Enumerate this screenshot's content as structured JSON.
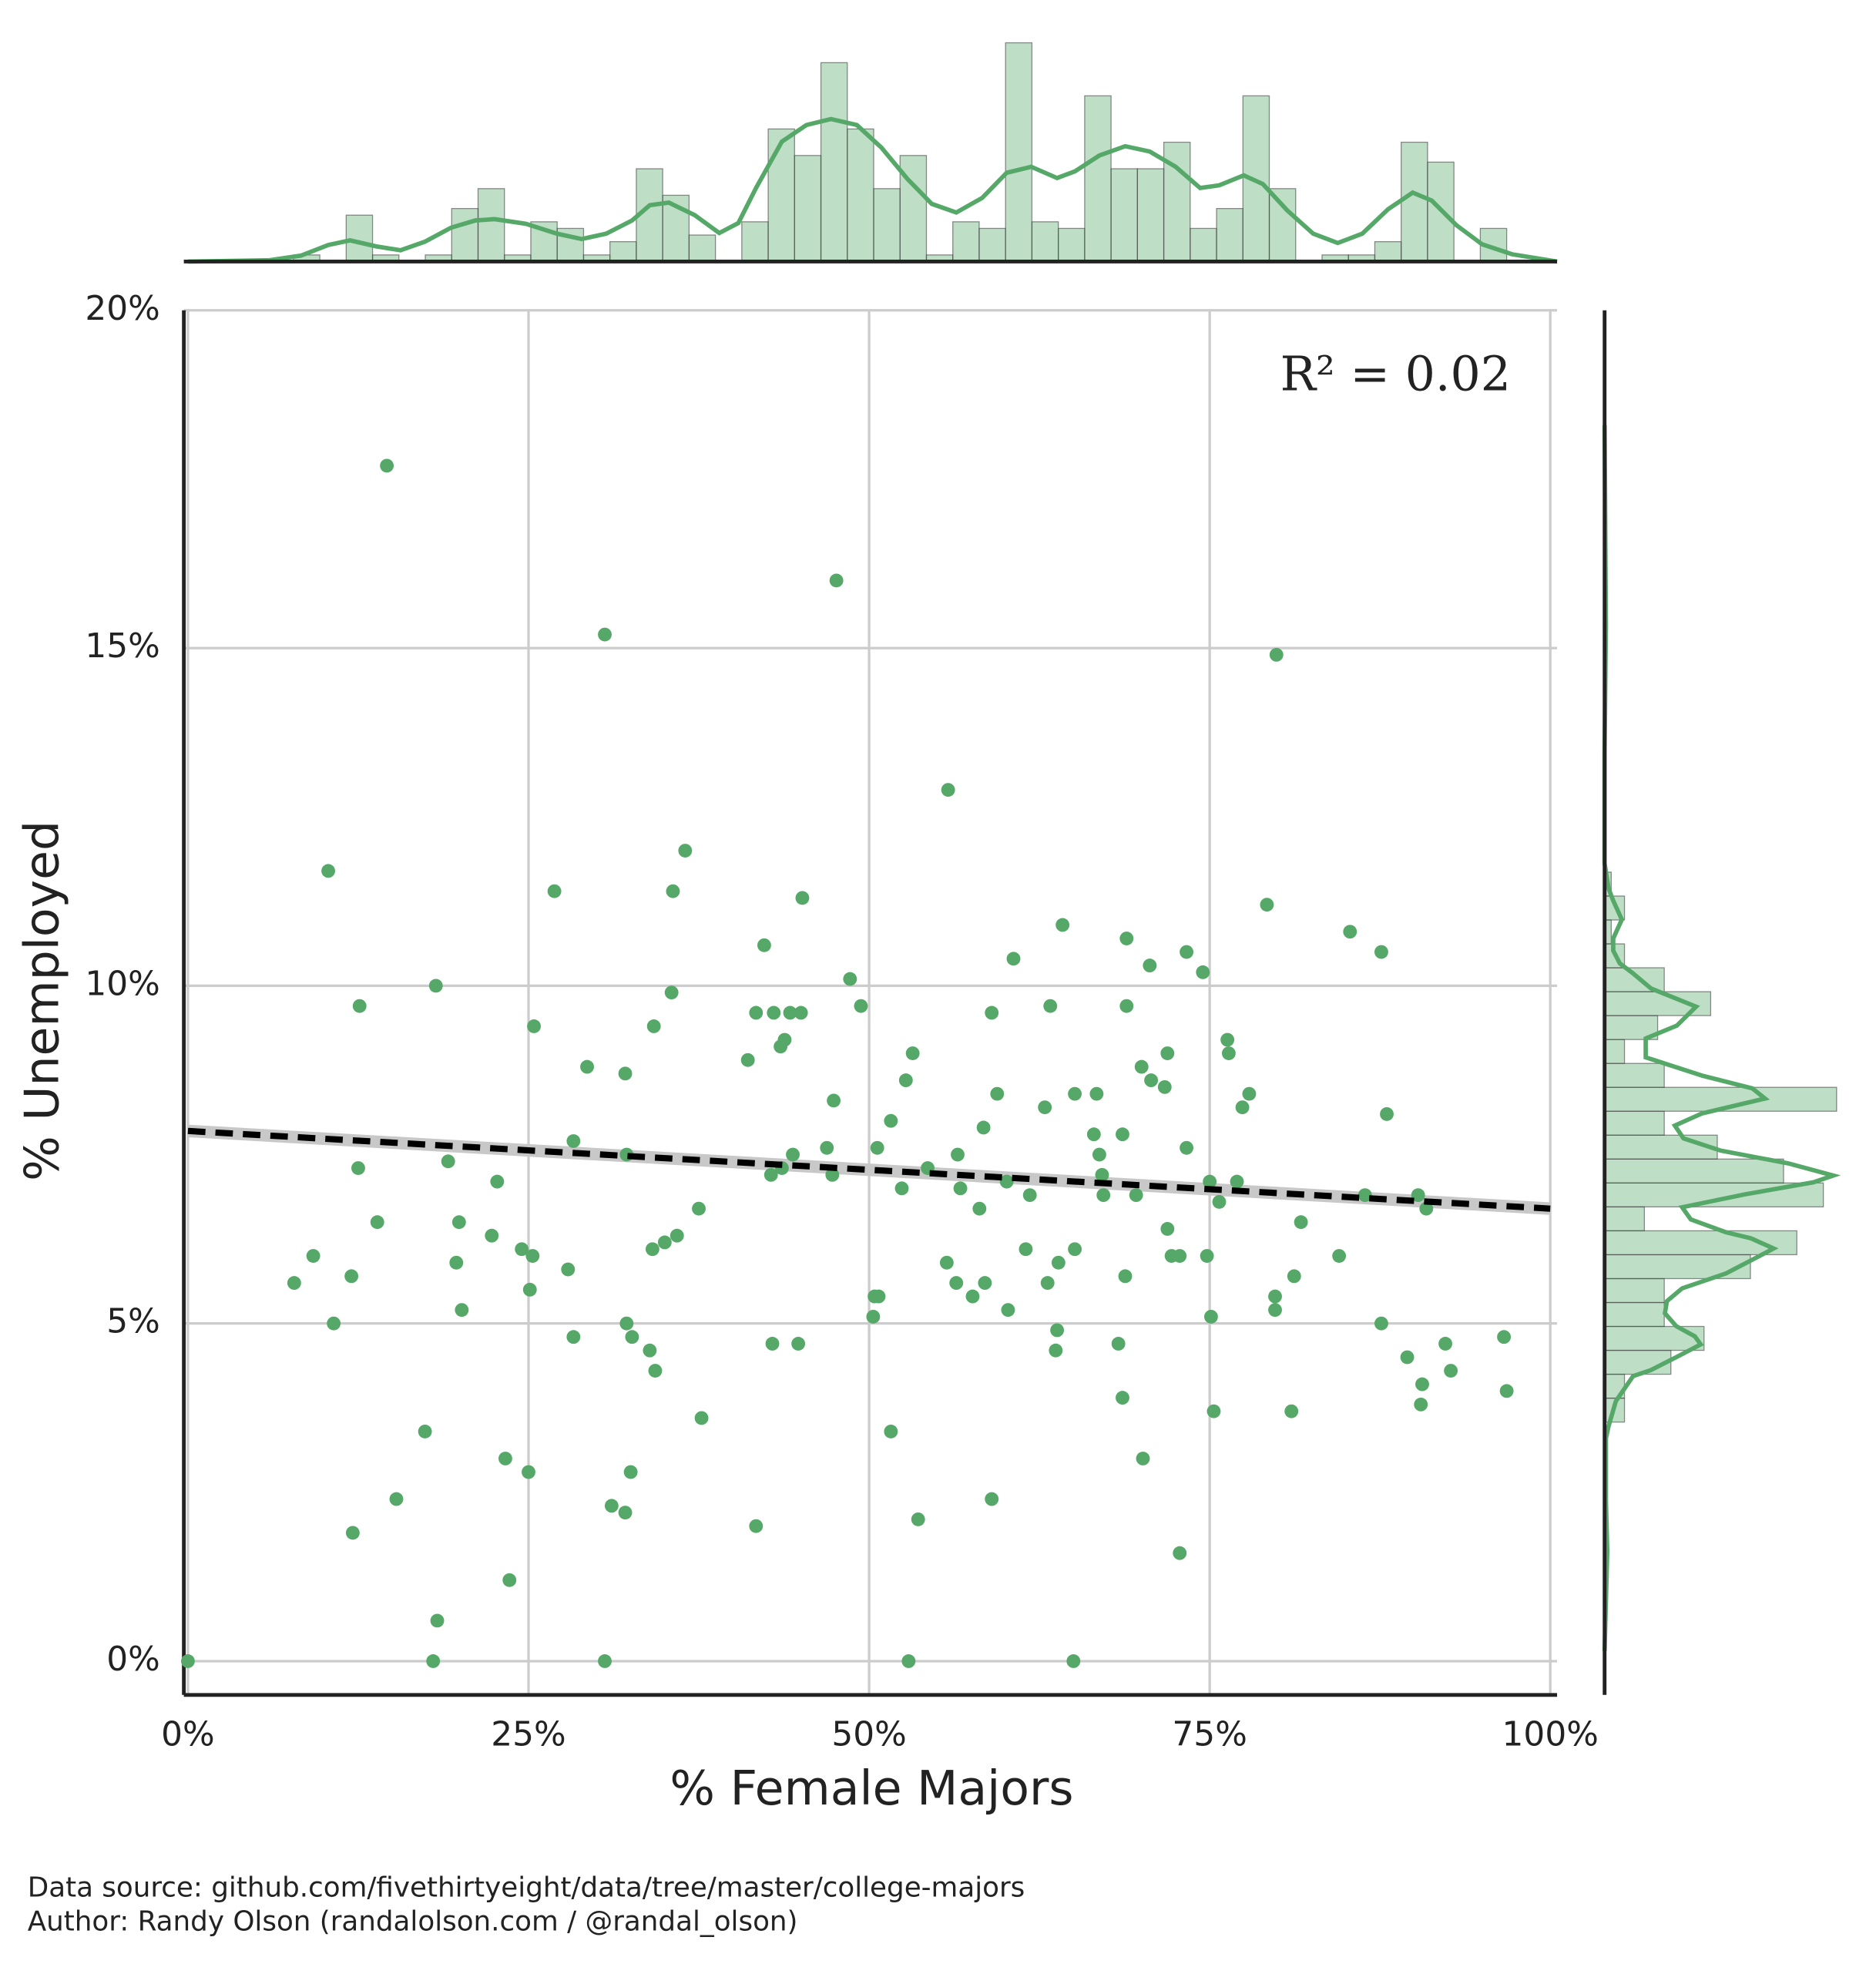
{
  "chart_data": {
    "type": "scatter",
    "x_label": "% Female Majors",
    "y_label": "% Unemployed",
    "annotation": "R² = 0.02",
    "color": "#55a868",
    "grid": true,
    "xlim": [
      -0.3,
      100.5
    ],
    "ylim": [
      -0.5,
      20
    ],
    "xticks": [
      {
        "value": 0,
        "label": "0%"
      },
      {
        "value": 25,
        "label": "25%"
      },
      {
        "value": 50,
        "label": "50%"
      },
      {
        "value": 75,
        "label": "75%"
      },
      {
        "value": 100,
        "label": "100%"
      }
    ],
    "yticks": [
      {
        "value": 0,
        "label": "0%"
      },
      {
        "value": 5,
        "label": "5%"
      },
      {
        "value": 10,
        "label": "10%"
      },
      {
        "value": 15,
        "label": "15%"
      },
      {
        "value": 20,
        "label": "20%"
      }
    ],
    "x": [
      0,
      14.6,
      47.6,
      30.6,
      79.9,
      55.8,
      10.3,
      36.5,
      26.9,
      35.6,
      45.1,
      79.2,
      64.2,
      68.9,
      85.3,
      42.3,
      73.3,
      87.6,
      60.6,
      70.6,
      74.5,
      48.6,
      18.2,
      35.5,
      49.4,
      12.6,
      63.3,
      68.9,
      41.7,
      43.0,
      44.2,
      45.0,
      59.0,
      25.4,
      34.2,
      43.8,
      43.5,
      76.3,
      41.1,
      53.2,
      71.9,
      76.4,
      29.3,
      32.1,
      70.0,
      52.7,
      70.7,
      71.7,
      59.4,
      66.7,
      65.1,
      77.9,
      47.4,
      77.4,
      62.9,
      88.0,
      51.6,
      58.4,
      68.6,
      28.3,
      66.5,
      19.1,
      32.2,
      50.6,
      46.9,
      56.5,
      66.9,
      73.3,
      12.5,
      44.4,
      42.8,
      43.6,
      47.3,
      54.3,
      22.7,
      60.1,
      67.1,
      75.0,
      77.0,
      52.4,
      56.7,
      61.8,
      67.2,
      69.6,
      75.7,
      86.4,
      90.3,
      90.9,
      37.5,
      58.1,
      13.9,
      19.9,
      81.7,
      22.3,
      35.9,
      71.9,
      35.0,
      65.1,
      61.5,
      9.2,
      24.5,
      34.1,
      25.3,
      84.5,
      72.2,
      72.8,
      74.8,
      19.7,
      63.9,
      27.9,
      55.7,
      12.0,
      81.2,
      7.8,
      68.8,
      56.4,
      58.5,
      25.1,
      57.6,
      63.1,
      50.7,
      50.4,
      79.8,
      20.1,
      60.2,
      79.8,
      50.3,
      75.1,
      10.7,
      32.2,
      87.6,
      28.3,
      63.8,
      32.6,
      42.9,
      44.8,
      68.3,
      63.7,
      92.3,
      96.6,
      33.9,
      89.5,
      34.3,
      92.7,
      90.6,
      96.8,
      68.6,
      90.5,
      75.3,
      81.0,
      37.7,
      17.4,
      51.6,
      23.3,
      70.1,
      25.0,
      32.5,
      15.3,
      59.0,
      31.1,
      32.1,
      53.6,
      12.1,
      41.7,
      72.8,
      23.6,
      18.3,
      18.0,
      30.6,
      52.9,
      65.0
    ],
    "y": [
      0,
      17.7,
      16.0,
      15.2,
      14.9,
      12.9,
      11.7,
      12.0,
      11.4,
      11.4,
      11.3,
      11.2,
      10.9,
      10.7,
      10.8,
      10.6,
      10.5,
      10.5,
      10.4,
      10.3,
      10.2,
      10.1,
      10.0,
      9.9,
      9.7,
      9.7,
      9.7,
      9.7,
      9.6,
      9.6,
      9.6,
      9.6,
      9.6,
      9.4,
      9.4,
      9.2,
      9.1,
      9.2,
      8.9,
      9.0,
      9.0,
      9.0,
      8.8,
      8.7,
      8.8,
      8.6,
      8.6,
      8.5,
      8.4,
      8.4,
      8.4,
      8.4,
      8.3,
      8.2,
      8.2,
      8.1,
      8.0,
      7.9,
      7.8,
      7.7,
      7.8,
      7.4,
      7.5,
      7.6,
      7.6,
      7.5,
      7.5,
      7.6,
      7.3,
      7.5,
      7.2,
      7.3,
      7.2,
      7.3,
      7.1,
      7.1,
      7.2,
      7.1,
      7.1,
      7.0,
      7.0,
      6.9,
      6.9,
      6.9,
      6.8,
      6.9,
      6.9,
      6.7,
      6.7,
      6.7,
      6.5,
      6.5,
      6.5,
      6.3,
      6.3,
      6.4,
      6.2,
      6.1,
      6.1,
      6.0,
      6.1,
      6.1,
      6.0,
      6.0,
      6.0,
      6.0,
      6.0,
      5.9,
      5.9,
      5.8,
      5.9,
      5.7,
      5.7,
      5.6,
      5.7,
      5.6,
      5.6,
      5.5,
      5.4,
      5.6,
      5.4,
      5.4,
      5.4,
      5.2,
      5.2,
      5.2,
      5.1,
      5.1,
      5.0,
      5.0,
      5.0,
      4.8,
      4.9,
      4.8,
      4.7,
      4.7,
      4.7,
      4.6,
      4.7,
      4.8,
      4.6,
      4.5,
      4.3,
      4.3,
      4.1,
      4.0,
      3.9,
      3.8,
      3.7,
      3.7,
      3.6,
      3.4,
      3.4,
      3.0,
      3.0,
      2.8,
      2.8,
      2.4,
      2.4,
      2.3,
      2.2,
      2.1,
      1.9,
      2.0,
      1.6,
      1.2,
      0.6,
      0,
      0,
      0,
      0
    ],
    "regression": {
      "x": [
        0,
        100
      ],
      "y": [
        7.85,
        6.7
      ],
      "color": "#000000"
    },
    "marginal_x": {
      "type": "histogram",
      "lim": [
        0,
        35
      ],
      "bins": [
        0,
        1.936,
        3.872,
        5.808,
        7.744,
        9.68,
        11.616,
        13.552,
        15.488,
        17.424,
        19.36,
        21.296,
        23.232,
        25.168,
        27.104,
        29.04,
        30.976,
        32.912,
        34.848,
        36.784,
        38.72,
        40.656,
        42.592,
        44.528,
        46.464,
        48.4,
        50.336,
        52.272,
        54.208,
        56.144,
        58.08,
        60.016,
        61.952,
        63.888,
        65.824,
        67.76,
        69.696,
        71.632,
        73.568,
        75.504,
        77.44,
        79.376,
        81.312,
        83.248,
        85.184,
        87.12,
        89.056,
        90.992,
        92.928,
        94.864,
        96.8
      ],
      "values": [
        0,
        0,
        0,
        0,
        1,
        0,
        7,
        1,
        0,
        1,
        8,
        11,
        1,
        6,
        5,
        1,
        3,
        14,
        10,
        4,
        0,
        6,
        20,
        16,
        30,
        20,
        11,
        16,
        1,
        6,
        5,
        33,
        6,
        5,
        25,
        14,
        14,
        18,
        5,
        8,
        25,
        11,
        0,
        1,
        1,
        3,
        18,
        15,
        0,
        5
      ],
      "kde": {
        "x": [
          0,
          6.0,
          8.3,
          10.3,
          11.9,
          13.8,
          15.6,
          17.4,
          19.3,
          21.1,
          22.5,
          24.8,
          27.1,
          28.9,
          30.7,
          32.6,
          33.9,
          35.3,
          37.2,
          39.0,
          40.4,
          41.7,
          43.6,
          45.4,
          47.2,
          49.1,
          50.9,
          52.8,
          54.6,
          56.4,
          58.3,
          60.1,
          61.9,
          63.8,
          65.1,
          66.9,
          68.8,
          70.6,
          72.5,
          74.3,
          75.7,
          77.5,
          78.9,
          80.7,
          82.6,
          84.4,
          86.2,
          88.1,
          89.9,
          91.3,
          93.1,
          95.0,
          97.2,
          100.5
        ],
        "y": [
          0,
          0.2,
          0.9,
          2.5,
          3.2,
          2.3,
          1.7,
          3.0,
          5.1,
          6.2,
          6.4,
          5.7,
          4.2,
          3.4,
          4.2,
          6.2,
          8.5,
          8.9,
          7.0,
          4.3,
          5.8,
          11.1,
          18.1,
          20.6,
          21.5,
          20.6,
          17.2,
          12.5,
          8.7,
          7.4,
          9.6,
          13.4,
          14.3,
          12.6,
          13.6,
          16.0,
          17.4,
          16.6,
          14.3,
          11.1,
          11.5,
          13.0,
          11.7,
          7.7,
          4.2,
          2.8,
          4.2,
          7.9,
          10.4,
          9.2,
          5.5,
          2.6,
          1.1,
          0
        ]
      }
    },
    "marginal_y": {
      "type": "histogram",
      "lim": [
        0,
        35
      ],
      "bins": [
        0,
        0.354,
        0.708,
        1.062,
        1.416,
        1.77,
        2.124,
        2.478,
        2.832,
        3.186,
        3.54,
        3.894,
        4.248,
        4.602,
        4.956,
        5.31,
        5.664,
        6.018,
        6.372,
        6.726,
        7.08,
        7.434,
        7.788,
        8.142,
        8.496,
        8.85,
        9.204,
        9.558,
        9.912,
        10.266,
        10.62,
        10.974,
        11.328,
        11.682,
        12.036,
        12.39,
        12.744,
        13.098,
        13.452,
        13.806,
        14.16,
        14.514,
        14.868,
        15.222,
        15.576,
        15.93,
        16.284,
        16.638,
        16.992,
        17.346,
        17.7
      ],
      "values": [
        0,
        0,
        0,
        0,
        0,
        0,
        0,
        0,
        0,
        0,
        3,
        3,
        10,
        15,
        9,
        9,
        22,
        29,
        6,
        33,
        27,
        17,
        9,
        35,
        9,
        3,
        8,
        16,
        9,
        3,
        1,
        3,
        1,
        0,
        0,
        0,
        0,
        0,
        0,
        0,
        0,
        0,
        0,
        0,
        0,
        0,
        0,
        0,
        0,
        0
      ],
      "kde": {
        "x": [
          0.15,
          1.63,
          2.37,
          3.3,
          3.48,
          3.85,
          4.22,
          4.31,
          4.5,
          4.69,
          4.81,
          4.96,
          5.15,
          5.33,
          5.52,
          5.74,
          5.98,
          6.11,
          6.26,
          6.35,
          6.54,
          6.72,
          6.91,
          7.09,
          7.19,
          7.37,
          7.56,
          7.74,
          7.93,
          8.11,
          8.33,
          8.48,
          8.67,
          8.94,
          9.22,
          9.41,
          9.69,
          9.96,
          10.19,
          10.33,
          10.52,
          10.7,
          10.98,
          11.26,
          11.44,
          11.81,
          13.48,
          15.33,
          18.3
        ],
        "y": [
          0,
          0.4,
          0.2,
          0.2,
          0.6,
          1.7,
          4.3,
          7.0,
          10.8,
          14.5,
          13.6,
          10.8,
          9.1,
          9.4,
          11.7,
          18.3,
          23.0,
          25.5,
          22.1,
          18.3,
          13.0,
          11.7,
          21.1,
          31.5,
          34.5,
          27.7,
          17.5,
          11.9,
          10.6,
          14.7,
          24.2,
          22.3,
          14.7,
          6.2,
          6.2,
          10.9,
          13.8,
          7.0,
          4.2,
          2.3,
          1.3,
          1.3,
          2.6,
          1.3,
          0.6,
          0,
          0,
          0.2,
          0
        ]
      }
    }
  },
  "footer": {
    "source": "Data source: github.com/fivethirtyeight/data/tree/master/college-majors",
    "author": "Author: Randy Olson (randalolson.com / @randal_olson)"
  }
}
